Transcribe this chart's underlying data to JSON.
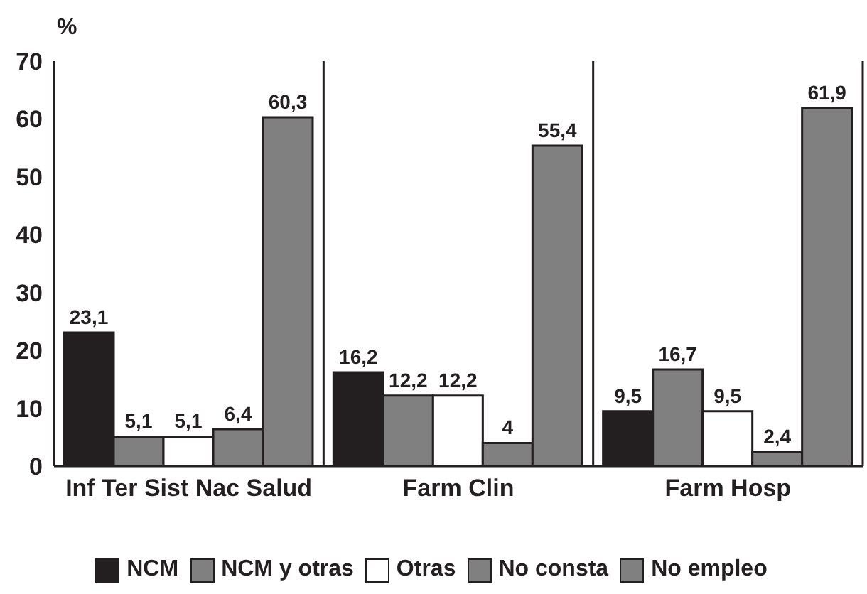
{
  "chart_data": {
    "type": "bar",
    "ylabel": "%",
    "categories": [
      "Inf Ter Sist Nac Salud",
      "Farm Clin",
      "Farm Hosp"
    ],
    "series": [
      {
        "name": "NCM",
        "color": "#231f20",
        "values": [
          23.1,
          16.2,
          9.5
        ],
        "value_labels": [
          "23,1",
          "16,2",
          "9,5"
        ]
      },
      {
        "name": "NCM y otras",
        "color": "#808080",
        "values": [
          5.1,
          12.2,
          16.7
        ],
        "value_labels": [
          "5,1",
          "12,2",
          "16,7"
        ]
      },
      {
        "name": "Otras",
        "color": "#ffffff",
        "values": [
          5.1,
          12.2,
          9.5
        ],
        "value_labels": [
          "5,1",
          "12,2",
          "9,5"
        ]
      },
      {
        "name": "No consta",
        "color": "#808080",
        "values": [
          6.4,
          4,
          2.4
        ],
        "value_labels": [
          "6,4",
          "4",
          "2,4"
        ]
      },
      {
        "name": "No empleo",
        "color": "#808080",
        "values": [
          60.3,
          55.4,
          61.9
        ],
        "value_labels": [
          "60,3",
          "55,4",
          "61,9"
        ]
      }
    ],
    "ylim": [
      0,
      70
    ],
    "yticks": [
      0,
      10,
      20,
      30,
      40,
      50,
      60,
      70
    ],
    "grid": "x",
    "legend": "bottom"
  }
}
